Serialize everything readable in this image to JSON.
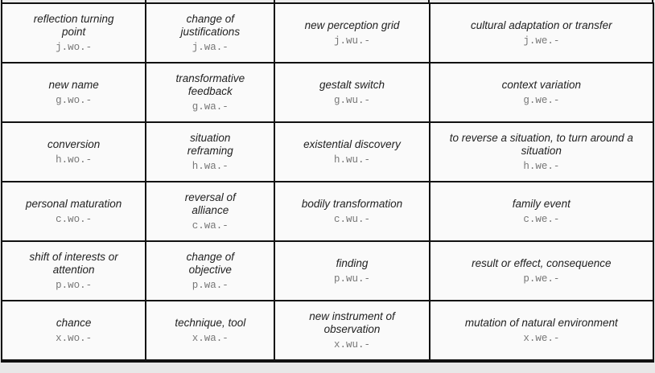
{
  "rows": [
    [
      {
        "label": "reflection turning point",
        "code": "j.wo.-"
      },
      {
        "label": "change of justifications",
        "code": "j.wa.-"
      },
      {
        "label": "new perception grid",
        "code": "j.wu.-"
      },
      {
        "label": "cultural adaptation or transfer",
        "code": "j.we.-"
      }
    ],
    [
      {
        "label": "new name",
        "code": "g.wo.-"
      },
      {
        "label": "transformative feedback",
        "code": "g.wa.-"
      },
      {
        "label": "gestalt switch",
        "code": "g.wu.-"
      },
      {
        "label": "context variation",
        "code": "g.we.-"
      }
    ],
    [
      {
        "label": "conversion",
        "code": "h.wo.-"
      },
      {
        "label": "situation reframing",
        "code": "h.wa.-"
      },
      {
        "label": "existential discovery",
        "code": "h.wu.-"
      },
      {
        "label": "to reverse a situation, to turn around a situation",
        "code": "h.we.-"
      }
    ],
    [
      {
        "label": "personal maturation",
        "code": "c.wo.-"
      },
      {
        "label": "reversal of alliance",
        "code": "c.wa.-"
      },
      {
        "label": "bodily transformation",
        "code": "c.wu.-"
      },
      {
        "label": "family event",
        "code": "c.we.-"
      }
    ],
    [
      {
        "label": "shift of interests or attention",
        "code": "p.wo.-"
      },
      {
        "label": "change of objective",
        "code": "p.wa.-"
      },
      {
        "label": "finding",
        "code": "p.wu.-"
      },
      {
        "label": "result or effect, consequence",
        "code": "p.we.-"
      }
    ],
    [
      {
        "label": "chance",
        "code": "x.wo.-"
      },
      {
        "label": "technique, tool",
        "code": "x.wa.-"
      },
      {
        "label": "new instrument of observation",
        "code": "x.wu.-"
      },
      {
        "label": "mutation of natural environment",
        "code": "x.we.-"
      }
    ]
  ]
}
